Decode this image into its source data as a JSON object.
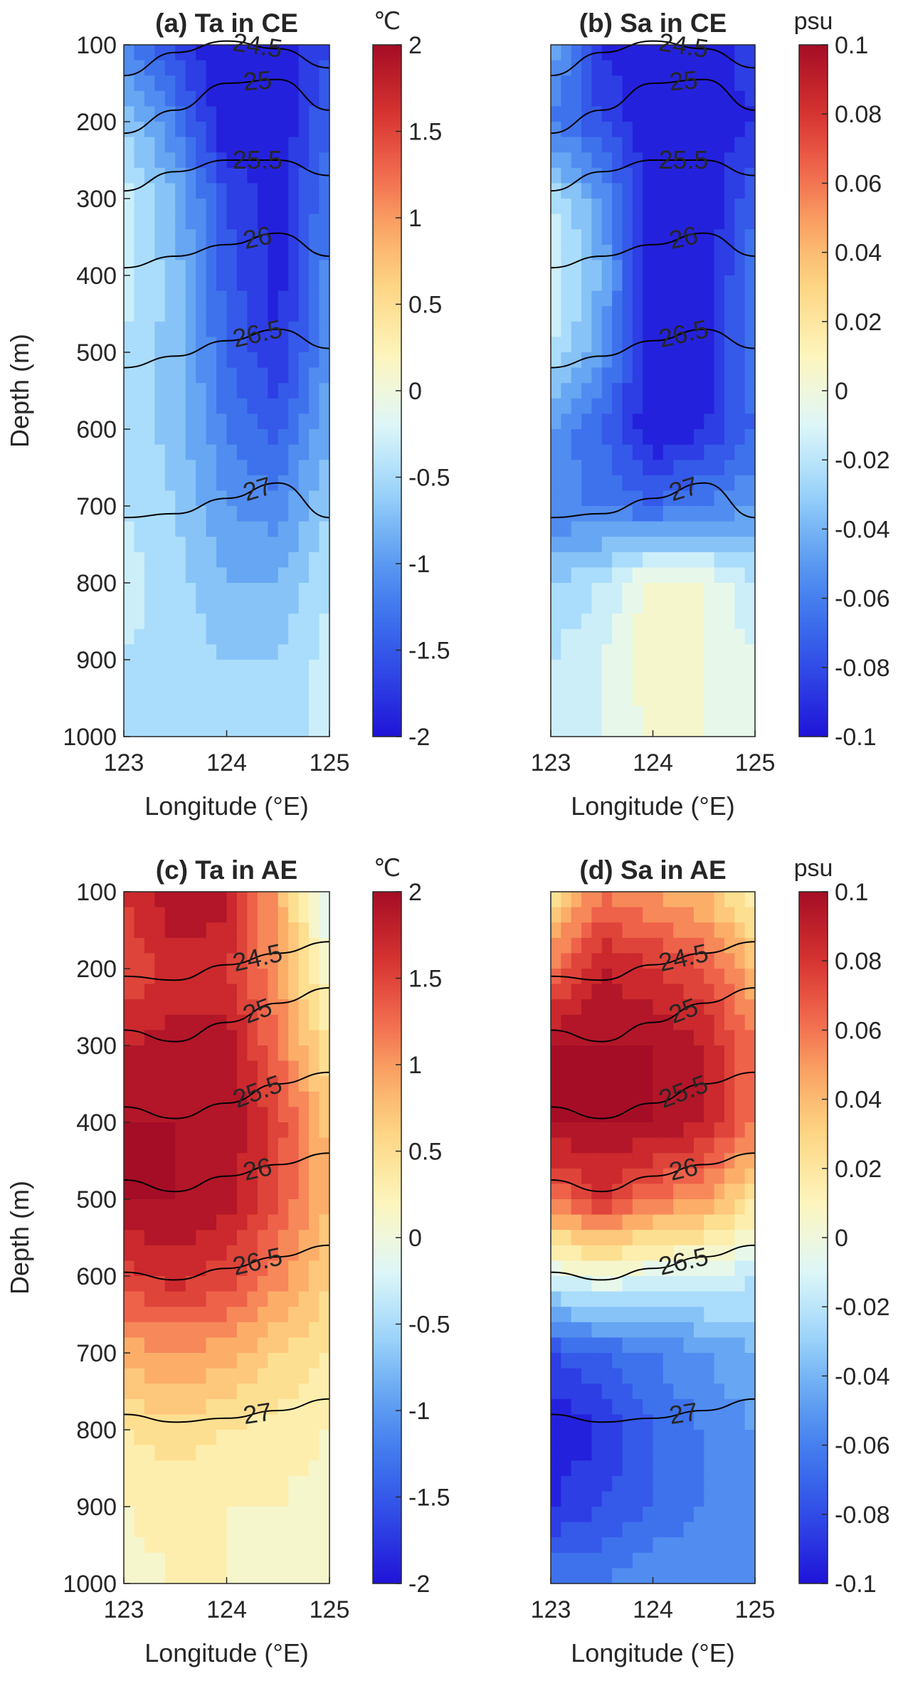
{
  "figure": {
    "palette": [
      "#2013d8",
      "#2f47e6",
      "#3f76ee",
      "#64a5f2",
      "#a2d9fb",
      "#e0f8f8",
      "#fdf6c0",
      "#fddc8a",
      "#fcad68",
      "#f1664c",
      "#d32f2e",
      "#a50d26"
    ]
  },
  "chart_data": [
    {
      "type": "heatmap",
      "panel": "a",
      "title": "(a) Ta in CE",
      "xlabel": "Longitude (°E)",
      "ylabel": "Depth (m)",
      "xlim": [
        123,
        125
      ],
      "ylim": [
        1000,
        100
      ],
      "xticks": [
        "123",
        "124",
        "125"
      ],
      "yticks": [
        "100",
        "200",
        "300",
        "400",
        "500",
        "600",
        "700",
        "800",
        "900",
        "1000"
      ],
      "colorbar": {
        "unit": "℃",
        "range": [
          -2,
          2
        ],
        "ticks": [
          "2",
          "1.5",
          "1",
          "0.5",
          "0",
          "-0.5",
          "-1",
          "-1.5",
          "-2"
        ]
      },
      "x": [
        123,
        123.5,
        124,
        124.5,
        125
      ],
      "depth": [
        100,
        200,
        300,
        400,
        500,
        600,
        700,
        800,
        900,
        1000
      ],
      "z": [
        [
          -1.2,
          -1.7,
          -2.0,
          -2.0,
          -1.6
        ],
        [
          -0.6,
          -1.2,
          -2.0,
          -2.0,
          -1.4
        ],
        [
          -0.3,
          -0.8,
          -1.6,
          -1.9,
          -1.2
        ],
        [
          -0.3,
          -0.7,
          -1.5,
          -1.9,
          -1.1
        ],
        [
          -0.4,
          -0.7,
          -1.4,
          -1.8,
          -1.0
        ],
        [
          -0.4,
          -0.7,
          -1.2,
          -1.5,
          -0.8
        ],
        [
          -0.4,
          -0.6,
          -1.0,
          -1.1,
          -0.6
        ],
        [
          -0.3,
          -0.5,
          -0.8,
          -0.8,
          -0.4
        ],
        [
          -0.4,
          -0.5,
          -0.6,
          -0.6,
          -0.3
        ],
        [
          -0.5,
          -0.5,
          -0.5,
          -0.5,
          -0.3
        ]
      ],
      "isopycnals": [
        {
          "label": "24.5",
          "depth": [
            140,
            110,
            95,
            105,
            130
          ]
        },
        {
          "label": "25",
          "depth": [
            215,
            185,
            150,
            145,
            185
          ]
        },
        {
          "label": "25.5",
          "depth": [
            290,
            265,
            250,
            250,
            270
          ]
        },
        {
          "label": "26",
          "depth": [
            390,
            375,
            360,
            345,
            375
          ]
        },
        {
          "label": "26.5",
          "depth": [
            520,
            505,
            485,
            470,
            495
          ]
        },
        {
          "label": "27",
          "depth": [
            715,
            710,
            690,
            670,
            715
          ]
        }
      ]
    },
    {
      "type": "heatmap",
      "panel": "b",
      "title": "(b) Sa in CE",
      "xlabel": "Longitude (°E)",
      "ylabel": "",
      "xlim": [
        123,
        125
      ],
      "ylim": [
        1000,
        100
      ],
      "xticks": [
        "123",
        "124",
        "125"
      ],
      "yticks": [],
      "colorbar": {
        "unit": "psu",
        "range": [
          -0.1,
          0.1
        ],
        "ticks": [
          "0.1",
          "0.08",
          "0.06",
          "0.04",
          "0.02",
          "0",
          "-0.02",
          "-0.04",
          "-0.06",
          "-0.08",
          "-0.1"
        ]
      },
      "x": [
        123,
        123.5,
        124,
        124.5,
        125
      ],
      "depth": [
        100,
        200,
        300,
        400,
        500,
        600,
        700,
        800,
        900,
        1000
      ],
      "z": [
        [
          -0.04,
          -0.09,
          -0.1,
          -0.1,
          -0.08
        ],
        [
          -0.06,
          -0.08,
          -0.1,
          -0.1,
          -0.09
        ],
        [
          -0.02,
          -0.05,
          -0.1,
          -0.1,
          -0.07
        ],
        [
          -0.01,
          -0.04,
          -0.1,
          -0.1,
          -0.06
        ],
        [
          -0.02,
          -0.05,
          -0.1,
          -0.1,
          -0.06
        ],
        [
          -0.05,
          -0.07,
          -0.1,
          -0.09,
          -0.07
        ],
        [
          -0.06,
          -0.06,
          -0.07,
          -0.06,
          -0.05
        ],
        [
          -0.03,
          -0.02,
          0.005,
          0.0,
          -0.02
        ],
        [
          -0.02,
          -0.01,
          0.008,
          0.0,
          -0.01
        ],
        [
          -0.02,
          -0.01,
          0.002,
          0.0,
          -0.01
        ]
      ],
      "isopycnals": [
        {
          "label": "24.5",
          "depth": [
            140,
            110,
            95,
            105,
            130
          ]
        },
        {
          "label": "25",
          "depth": [
            215,
            185,
            150,
            145,
            185
          ]
        },
        {
          "label": "25.5",
          "depth": [
            290,
            265,
            250,
            250,
            270
          ]
        },
        {
          "label": "26",
          "depth": [
            390,
            375,
            360,
            345,
            375
          ]
        },
        {
          "label": "26.5",
          "depth": [
            520,
            505,
            485,
            470,
            495
          ]
        },
        {
          "label": "27",
          "depth": [
            715,
            710,
            690,
            670,
            715
          ]
        }
      ]
    },
    {
      "type": "heatmap",
      "panel": "c",
      "title": "(c) Ta in AE",
      "xlabel": "Longitude (°E)",
      "ylabel": "Depth (m)",
      "xlim": [
        123,
        125
      ],
      "ylim": [
        1000,
        100
      ],
      "xticks": [
        "123",
        "124",
        "125"
      ],
      "yticks": [
        "100",
        "200",
        "300",
        "400",
        "500",
        "600",
        "700",
        "800",
        "900",
        "1000"
      ],
      "colorbar": {
        "unit": "℃",
        "range": [
          -2,
          2
        ],
        "ticks": [
          "2",
          "1.5",
          "1",
          "0.5",
          "0",
          "-0.5",
          "-1",
          "-1.5",
          "-2"
        ]
      },
      "x": [
        123,
        123.5,
        124,
        124.5,
        125
      ],
      "depth": [
        100,
        200,
        300,
        400,
        500,
        600,
        700,
        800,
        900,
        1000
      ],
      "z": [
        [
          1.6,
          2.0,
          1.9,
          0.9,
          -0.3
        ],
        [
          1.4,
          1.7,
          1.6,
          1.0,
          0.0
        ],
        [
          1.8,
          1.9,
          1.9,
          1.2,
          0.4
        ],
        [
          2.0,
          2.0,
          2.0,
          1.5,
          0.7
        ],
        [
          2.0,
          2.0,
          1.9,
          1.4,
          0.8
        ],
        [
          1.5,
          1.7,
          1.5,
          1.1,
          0.6
        ],
        [
          0.9,
          1.0,
          0.9,
          0.6,
          0.4
        ],
        [
          0.4,
          0.5,
          0.4,
          0.3,
          0.2
        ],
        [
          0.2,
          0.3,
          0.2,
          0.2,
          0.1
        ],
        [
          0.1,
          0.2,
          0.2,
          0.1,
          0.0
        ]
      ],
      "isopycnals": [
        {
          "label": "24.5",
          "depth": [
            210,
            215,
            195,
            180,
            165
          ]
        },
        {
          "label": "25",
          "depth": [
            280,
            295,
            270,
            245,
            225
          ]
        },
        {
          "label": "25.5",
          "depth": [
            380,
            395,
            375,
            350,
            335
          ]
        },
        {
          "label": "26",
          "depth": [
            475,
            490,
            470,
            455,
            440
          ]
        },
        {
          "label": "26.5",
          "depth": [
            595,
            605,
            590,
            575,
            560
          ]
        },
        {
          "label": "27",
          "depth": [
            780,
            790,
            785,
            775,
            760
          ]
        }
      ]
    },
    {
      "type": "heatmap",
      "panel": "d",
      "title": "(d) Sa in AE",
      "xlabel": "Longitude (°E)",
      "ylabel": "",
      "xlim": [
        123,
        125
      ],
      "ylim": [
        1000,
        100
      ],
      "xticks": [
        "123",
        "124",
        "125"
      ],
      "yticks": [],
      "colorbar": {
        "unit": "psu",
        "range": [
          -0.1,
          0.1
        ],
        "ticks": [
          "0.1",
          "0.08",
          "0.06",
          "0.04",
          "0.02",
          "0",
          "-0.02",
          "-0.04",
          "-0.06",
          "-0.08",
          "-0.1"
        ]
      },
      "x": [
        123,
        123.5,
        124,
        124.5,
        125
      ],
      "depth": [
        100,
        200,
        300,
        400,
        500,
        600,
        700,
        800,
        900,
        1000
      ],
      "z": [
        [
          0.02,
          0.06,
          0.05,
          0.04,
          0.01
        ],
        [
          0.06,
          0.09,
          0.08,
          0.07,
          0.04
        ],
        [
          0.1,
          0.1,
          0.1,
          0.09,
          0.06
        ],
        [
          0.1,
          0.1,
          0.1,
          0.09,
          0.06
        ],
        [
          0.06,
          0.08,
          0.06,
          0.05,
          0.02
        ],
        [
          -0.01,
          0.0,
          -0.01,
          -0.01,
          -0.02
        ],
        [
          -0.08,
          -0.07,
          -0.06,
          -0.05,
          -0.04
        ],
        [
          -0.1,
          -0.09,
          -0.07,
          -0.06,
          -0.05
        ],
        [
          -0.09,
          -0.08,
          -0.07,
          -0.06,
          -0.05
        ],
        [
          -0.06,
          -0.06,
          -0.05,
          -0.05,
          -0.05
        ]
      ],
      "isopycnals": [
        {
          "label": "24.5",
          "depth": [
            210,
            215,
            195,
            180,
            165
          ]
        },
        {
          "label": "25",
          "depth": [
            280,
            295,
            270,
            245,
            225
          ]
        },
        {
          "label": "25.5",
          "depth": [
            380,
            395,
            375,
            350,
            335
          ]
        },
        {
          "label": "26",
          "depth": [
            475,
            490,
            470,
            455,
            440
          ]
        },
        {
          "label": "26.5",
          "depth": [
            595,
            605,
            590,
            575,
            560
          ]
        },
        {
          "label": "27",
          "depth": [
            780,
            790,
            785,
            775,
            760
          ]
        }
      ]
    }
  ]
}
